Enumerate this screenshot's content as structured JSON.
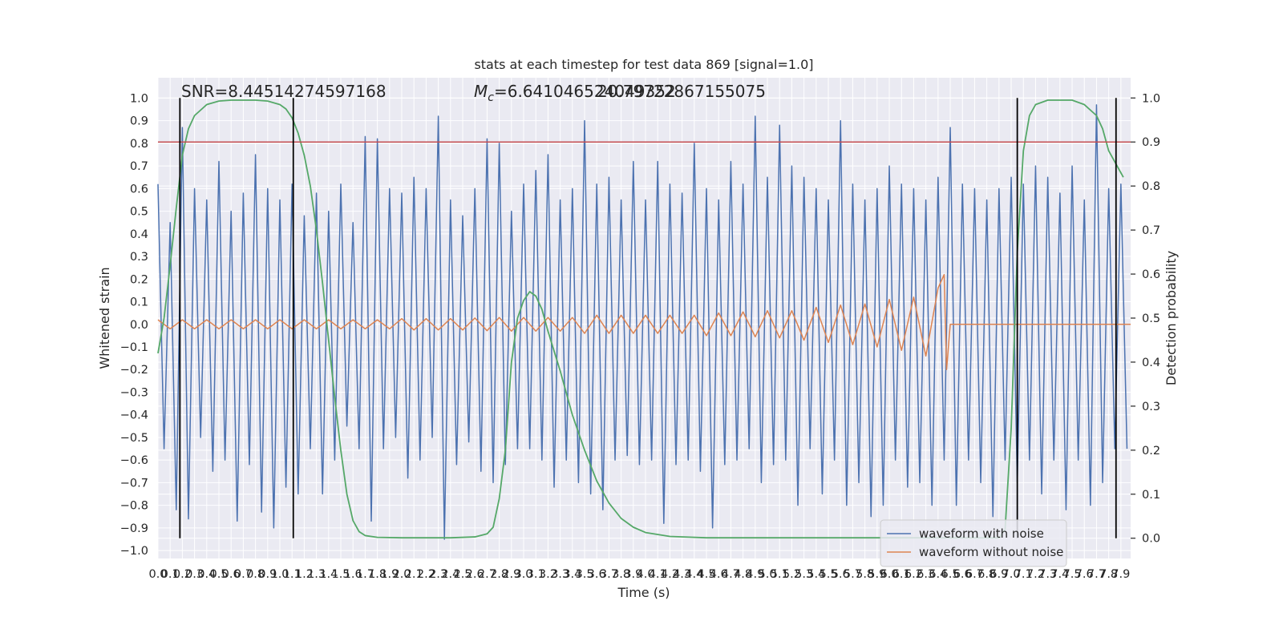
{
  "chart_data": {
    "type": "line",
    "title": "stats at each timestep for test data 869 [signal=1.0]",
    "x_label": "Time (s)",
    "y_label": "Whitened strain",
    "y2_label": "Detection probability",
    "grid": true,
    "background": "#eaeaf2",
    "legend": "lower right",
    "annotations": {
      "snr": "SNR=8.44514274597168",
      "chirp_mass": {
        "symbol": "M",
        "subscript": "c",
        "text": "=6.641046524049352"
      },
      "distance": "20.79722867155075"
    },
    "xlim": [
      0,
      7.98
    ],
    "ylim": [
      -1.035,
      1.09
    ],
    "y2lim": [
      -0.046,
      1.046
    ],
    "xticks": [
      {
        "value": 0,
        "label": "0.0"
      },
      0.1,
      0.2,
      0.3,
      0.4,
      0.5,
      0.6,
      0.7,
      0.8,
      0.9,
      {
        "value": 1,
        "label": "1.0"
      },
      1.1,
      1.2,
      1.3,
      1.4,
      1.5,
      1.6,
      1.7,
      1.8,
      1.9,
      {
        "value": 2,
        "label": "2.0"
      },
      2.1,
      2.2,
      2.3,
      2.4,
      2.5,
      2.6,
      2.7,
      2.8,
      2.9,
      {
        "value": 3,
        "label": "3.0"
      },
      3.1,
      3.2,
      3.3,
      3.4,
      3.5,
      3.6,
      3.7,
      3.8,
      3.9,
      {
        "value": 4,
        "label": "4.0"
      },
      4.1,
      4.2,
      4.3,
      4.4,
      4.5,
      4.6,
      4.7,
      4.8,
      4.9,
      {
        "value": 5,
        "label": "5.0"
      },
      5.1,
      5.2,
      5.3,
      5.4,
      5.5,
      5.6,
      5.7,
      5.8,
      5.9,
      {
        "value": 6,
        "label": "6.0"
      },
      6.1,
      6.2,
      6.3,
      6.4,
      6.5,
      6.6,
      6.7,
      6.8,
      6.9,
      {
        "value": 7,
        "label": "7.0"
      },
      7.1,
      7.2,
      7.3,
      7.4,
      7.5,
      7.6,
      7.7,
      7.8,
      7.9
    ],
    "yticks": [
      {
        "value": -1,
        "label": "−1.0"
      },
      {
        "value": -0.9,
        "label": "−0.9"
      },
      {
        "value": -0.8,
        "label": "−0.8"
      },
      {
        "value": -0.7,
        "label": "−0.7"
      },
      {
        "value": -0.6,
        "label": "−0.6"
      },
      {
        "value": -0.5,
        "label": "−0.5"
      },
      {
        "value": -0.4,
        "label": "−0.4"
      },
      {
        "value": -0.3,
        "label": "−0.3"
      },
      {
        "value": -0.2,
        "label": "−0.2"
      },
      {
        "value": -0.1,
        "label": "−0.1"
      },
      {
        "value": 0,
        "label": "0.0"
      },
      0.1,
      0.2,
      0.3,
      0.4,
      0.5,
      0.6,
      0.7,
      0.8,
      0.9,
      {
        "value": 1,
        "label": "1.0"
      }
    ],
    "y2ticks": [
      {
        "value": 0,
        "label": "0.0"
      },
      0.1,
      0.2,
      0.3,
      0.4,
      0.5,
      0.6,
      0.7,
      0.8,
      0.9,
      {
        "value": 1,
        "label": "1.0"
      }
    ],
    "threshold": {
      "value": 0.9,
      "axis": "y2",
      "color": "#c44e52"
    },
    "vlines": {
      "x": [
        0.18,
        1.11,
        7.05,
        7.86
      ],
      "ymin": 0,
      "ymax": 1,
      "axis": "y2",
      "color": "#000000"
    },
    "series": [
      {
        "name": "waveform with noise",
        "color": "#4c72b0",
        "x": [
          0,
          0.05,
          0.1,
          0.15,
          0.2,
          0.25,
          0.3,
          0.35,
          0.4,
          0.45,
          0.5,
          0.55,
          0.6,
          0.65,
          0.7,
          0.75,
          0.8,
          0.85,
          0.9,
          0.95,
          1,
          1.05,
          1.1,
          1.15,
          1.2,
          1.25,
          1.3,
          1.35,
          1.4,
          1.45,
          1.5,
          1.55,
          1.6,
          1.65,
          1.7,
          1.75,
          1.8,
          1.85,
          1.9,
          1.95,
          2,
          2.05,
          2.1,
          2.15,
          2.2,
          2.25,
          2.3,
          2.35,
          2.4,
          2.45,
          2.5,
          2.55,
          2.6,
          2.65,
          2.7,
          2.75,
          2.8,
          2.85,
          2.9,
          2.95,
          3,
          3.05,
          3.1,
          3.15,
          3.2,
          3.25,
          3.3,
          3.35,
          3.4,
          3.45,
          3.5,
          3.55,
          3.6,
          3.65,
          3.7,
          3.75,
          3.8,
          3.85,
          3.9,
          3.95,
          4,
          4.05,
          4.1,
          4.15,
          4.2,
          4.25,
          4.3,
          4.35,
          4.4,
          4.45,
          4.5,
          4.55,
          4.6,
          4.65,
          4.7,
          4.75,
          4.8,
          4.85,
          4.9,
          4.95,
          5,
          5.05,
          5.1,
          5.15,
          5.2,
          5.25,
          5.3,
          5.35,
          5.4,
          5.45,
          5.5,
          5.55,
          5.6,
          5.65,
          5.7,
          5.75,
          5.8,
          5.85,
          5.9,
          5.95,
          6,
          6.05,
          6.1,
          6.15,
          6.2,
          6.25,
          6.3,
          6.35,
          6.4,
          6.45,
          6.5,
          6.55,
          6.6,
          6.65,
          6.7,
          6.75,
          6.8,
          6.85,
          6.9,
          6.95,
          7,
          7.05,
          7.1,
          7.15,
          7.2,
          7.25,
          7.3,
          7.35,
          7.4,
          7.45,
          7.5,
          7.55,
          7.6,
          7.65,
          7.7,
          7.75,
          7.8,
          7.85,
          7.9,
          7.95
        ],
        "values": [
          0.62,
          -0.55,
          0.45,
          -0.82,
          0.87,
          -0.86,
          0.6,
          -0.5,
          0.55,
          -0.65,
          0.72,
          -0.6,
          0.5,
          -0.87,
          0.58,
          -0.62,
          0.75,
          -0.83,
          0.6,
          -0.9,
          0.55,
          -0.72,
          0.62,
          -0.75,
          0.48,
          -0.55,
          0.58,
          -0.75,
          0.5,
          -0.6,
          0.62,
          -0.45,
          0.45,
          -0.55,
          0.83,
          -0.87,
          0.82,
          -0.55,
          0.6,
          -0.5,
          0.58,
          -0.68,
          0.65,
          -0.6,
          0.6,
          -0.5,
          0.92,
          -0.95,
          0.55,
          -0.62,
          0.48,
          -0.52,
          0.6,
          -0.65,
          0.82,
          -0.7,
          0.8,
          -0.62,
          0.5,
          -0.55,
          0.62,
          -0.55,
          0.68,
          -0.6,
          0.75,
          -0.72,
          0.55,
          -0.6,
          0.6,
          -0.7,
          0.9,
          -0.75,
          0.62,
          -0.82,
          0.65,
          -0.6,
          0.55,
          -0.58,
          0.72,
          -0.62,
          0.55,
          -0.6,
          0.72,
          -0.88,
          0.62,
          -0.62,
          0.58,
          -0.6,
          0.8,
          -0.65,
          0.6,
          -0.9,
          0.55,
          -0.62,
          0.72,
          -0.6,
          0.62,
          -0.55,
          0.92,
          -0.7,
          0.65,
          -0.62,
          0.88,
          -0.6,
          0.7,
          -0.8,
          0.65,
          -0.55,
          0.6,
          -0.75,
          0.55,
          -0.6,
          0.9,
          -0.8,
          0.62,
          -0.7,
          0.55,
          -0.85,
          0.6,
          -0.8,
          0.7,
          -0.6,
          0.62,
          -0.72,
          0.6,
          -0.7,
          0.55,
          -0.8,
          0.65,
          -0.6,
          0.87,
          -0.8,
          0.62,
          -0.6,
          0.6,
          -0.7,
          0.55,
          -0.85,
          0.6,
          -0.6,
          0.65,
          -0.7,
          0.62,
          -0.6,
          0.7,
          -0.75,
          0.65,
          -0.6,
          0.58,
          -0.82,
          0.7,
          -0.6,
          0.55,
          -0.8,
          0.97,
          -0.7,
          0.6,
          -0.55,
          0.62,
          -0.55
        ]
      },
      {
        "name": "waveform without noise",
        "color": "#dd8452",
        "x": [
          0,
          0.1,
          0.2,
          0.3,
          0.4,
          0.5,
          0.6,
          0.7,
          0.8,
          0.9,
          1,
          1.1,
          1.2,
          1.3,
          1.4,
          1.5,
          1.6,
          1.7,
          1.8,
          1.9,
          2,
          2.1,
          2.2,
          2.3,
          2.4,
          2.5,
          2.6,
          2.7,
          2.8,
          2.9,
          3,
          3.1,
          3.2,
          3.3,
          3.4,
          3.5,
          3.6,
          3.7,
          3.8,
          3.9,
          4,
          4.1,
          4.2,
          4.3,
          4.4,
          4.5,
          4.6,
          4.7,
          4.8,
          4.9,
          5,
          5.1,
          5.2,
          5.3,
          5.4,
          5.5,
          5.6,
          5.7,
          5.8,
          5.9,
          6,
          6.1,
          6.2,
          6.3,
          6.4,
          6.45,
          6.47,
          6.5,
          7.98
        ],
        "values": [
          0.02,
          -0.02,
          0.02,
          -0.02,
          0.02,
          -0.02,
          0.02,
          -0.02,
          0.02,
          -0.02,
          0.02,
          -0.02,
          0.02,
          -0.02,
          0.02,
          -0.02,
          0.02,
          -0.02,
          0.02,
          -0.02,
          0.025,
          -0.025,
          0.025,
          -0.025,
          0.025,
          -0.025,
          0.028,
          -0.028,
          0.03,
          -0.03,
          0.03,
          -0.03,
          0.03,
          -0.03,
          0.03,
          -0.04,
          0.04,
          -0.04,
          0.04,
          -0.04,
          0.04,
          -0.04,
          0.04,
          -0.04,
          0.04,
          -0.05,
          0.05,
          -0.05,
          0.055,
          -0.055,
          0.06,
          -0.06,
          0.06,
          -0.07,
          0.075,
          -0.08,
          0.085,
          -0.09,
          0.09,
          -0.1,
          0.11,
          -0.115,
          0.12,
          -0.14,
          0.16,
          0.22,
          -0.2,
          0,
          0
        ]
      },
      {
        "color": "#55a868",
        "axis": "y2",
        "x": [
          0,
          0.05,
          0.1,
          0.15,
          0.2,
          0.25,
          0.3,
          0.4,
          0.5,
          0.6,
          0.8,
          0.9,
          1,
          1.05,
          1.1,
          1.15,
          1.2,
          1.25,
          1.3,
          1.35,
          1.4,
          1.45,
          1.5,
          1.55,
          1.6,
          1.65,
          1.7,
          1.8,
          2,
          2.4,
          2.6,
          2.7,
          2.75,
          2.8,
          2.85,
          2.9,
          2.95,
          3,
          3.05,
          3.1,
          3.15,
          3.2,
          3.3,
          3.4,
          3.5,
          3.6,
          3.7,
          3.8,
          3.9,
          4,
          4.2,
          4.5,
          6.9,
          6.95,
          7,
          7.05,
          7.1,
          7.15,
          7.2,
          7.3,
          7.5,
          7.6,
          7.7,
          7.75,
          7.8,
          7.92
        ],
        "values": [
          0.42,
          0.5,
          0.62,
          0.75,
          0.87,
          0.93,
          0.96,
          0.985,
          0.993,
          0.995,
          0.995,
          0.993,
          0.985,
          0.975,
          0.955,
          0.92,
          0.87,
          0.8,
          0.7,
          0.58,
          0.45,
          0.32,
          0.2,
          0.1,
          0.04,
          0.015,
          0.006,
          0.002,
          0.001,
          0.001,
          0.003,
          0.01,
          0.025,
          0.09,
          0.2,
          0.4,
          0.5,
          0.54,
          0.56,
          0.55,
          0.52,
          0.47,
          0.38,
          0.28,
          0.2,
          0.13,
          0.08,
          0.045,
          0.025,
          0.013,
          0.004,
          0.001,
          0.001,
          0.02,
          0.25,
          0.65,
          0.88,
          0.96,
          0.985,
          0.995,
          0.995,
          0.985,
          0.96,
          0.93,
          0.88,
          0.82
        ]
      }
    ]
  }
}
